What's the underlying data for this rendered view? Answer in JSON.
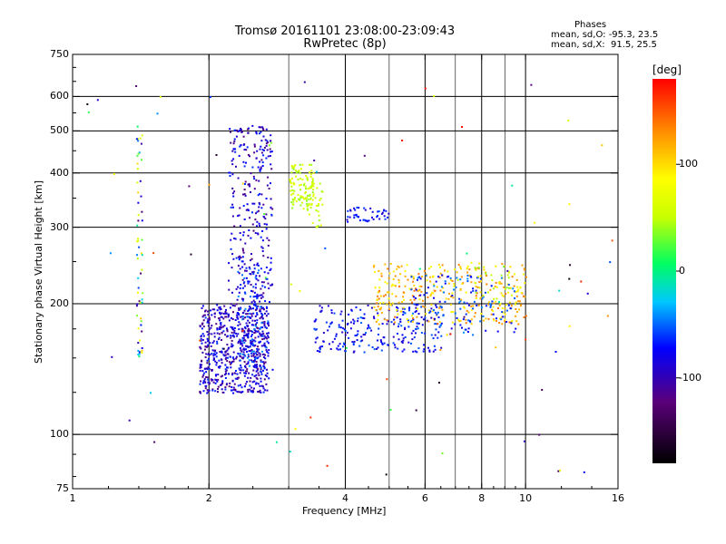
{
  "header": {
    "title_line1": "Tromsø 20161101 23:08:00-23:09:43",
    "title_line2": "RwPretec (8p)"
  },
  "phases": {
    "heading": "Phases",
    "line_o": "mean, sd,O: -95.3, 23.5",
    "line_x": "mean, sd,X:  91.5, 25.5"
  },
  "chart_data": {
    "type": "scatter",
    "xlabel": "Frequency [MHz]",
    "ylabel": "Stationary phase Virtual Height [km]",
    "x_scale": "log",
    "y_scale": "log",
    "xlim": [
      1,
      16
    ],
    "ylim": [
      75,
      750
    ],
    "x_ticks": [
      1,
      2,
      4,
      6,
      8,
      10,
      16
    ],
    "x_tick_labels": [
      "1",
      "2",
      "4",
      "6",
      "8",
      "10",
      "16"
    ],
    "x_grid": [
      2,
      4,
      6,
      8,
      10
    ],
    "x_minor_grid": [
      3,
      5,
      7,
      9
    ],
    "y_ticks": [
      75,
      100,
      200,
      300,
      400,
      500,
      600,
      750
    ],
    "y_tick_labels": [
      "75",
      "100",
      "200",
      "300",
      "400",
      "500",
      "600",
      "750"
    ],
    "y_grid": [
      100,
      200,
      300,
      400,
      500,
      600
    ],
    "grid": true,
    "colorbar": {
      "label": "[deg]",
      "range": [
        -180,
        180
      ],
      "ticks": [
        100,
        0,
        -100
      ],
      "tick_labels": [
        "100",
        "0",
        "-100"
      ]
    },
    "clusters": [
      {
        "x": [
          1.9,
          2.7
        ],
        "y": [
          125,
          200
        ],
        "phase": [
          -130,
          -80
        ],
        "count": 650
      },
      {
        "x": [
          2.2,
          2.75
        ],
        "y": [
          200,
          520
        ],
        "phase": [
          -130,
          -80
        ],
        "count": 280
      },
      {
        "x": [
          2.3,
          2.7
        ],
        "y": [
          140,
          250
        ],
        "phase": [
          -110,
          -60
        ],
        "count": 140
      },
      {
        "x": [
          3.0,
          3.4
        ],
        "y": [
          330,
          420
        ],
        "phase": [
          30,
          80
        ],
        "count": 110
      },
      {
        "x": [
          3.3,
          3.55
        ],
        "y": [
          300,
          380
        ],
        "phase": [
          35,
          80
        ],
        "count": 30
      },
      {
        "x": [
          3.4,
          6.5
        ],
        "y": [
          155,
          200
        ],
        "phase": [
          -110,
          -70
        ],
        "count": 230
      },
      {
        "x": [
          4.0,
          5.0
        ],
        "y": [
          310,
          335
        ],
        "phase": [
          -110,
          -70
        ],
        "count": 45
      },
      {
        "x": [
          4.6,
          10
        ],
        "y": [
          180,
          250
        ],
        "phase": [
          90,
          150
        ],
        "count": 330
      },
      {
        "x": [
          5.5,
          9.5
        ],
        "y": [
          170,
          235
        ],
        "phase": [
          -100,
          -60
        ],
        "count": 130
      },
      {
        "x": [
          7.6,
          9.3
        ],
        "y": [
          205,
          245
        ],
        "phase": [
          25,
          75
        ],
        "count": 25
      },
      {
        "x": [
          1.38,
          1.42
        ],
        "y": [
          150,
          520
        ],
        "phase": [
          -140,
          130
        ],
        "count": 60
      },
      {
        "x": [
          1.0,
          16
        ],
        "y": [
          80,
          700
        ],
        "phase": [
          -180,
          180
        ],
        "count": 90
      }
    ]
  }
}
